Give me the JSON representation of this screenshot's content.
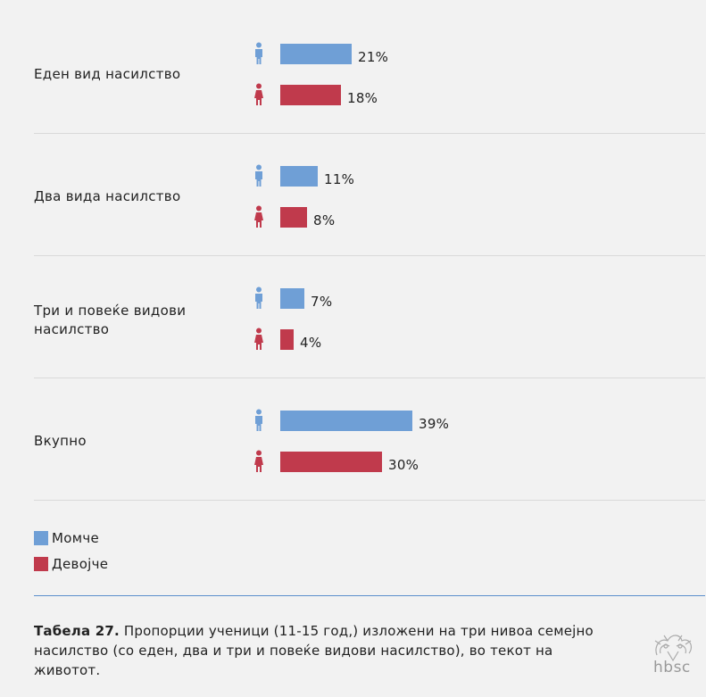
{
  "colors": {
    "boy": "#6f9fd6",
    "girl": "#c03a4c",
    "divider": "#5b8fcc"
  },
  "chart_data": {
    "type": "bar",
    "orientation": "horizontal",
    "categories": [
      "Еден вид насилство",
      "Два вида насилство",
      "Три и повеќе видови насилство",
      "Вкупно"
    ],
    "series": [
      {
        "name": "Момче",
        "values": [
          21,
          11,
          7,
          39
        ],
        "color": "#6f9fd6"
      },
      {
        "name": "Девојче",
        "values": [
          18,
          8,
          4,
          30
        ],
        "color": "#c03a4c"
      }
    ],
    "unit": "%",
    "xlim": [
      0,
      100
    ],
    "grid": false,
    "legend": "bottom-left"
  },
  "legend": {
    "boy": "Момче",
    "girl": "Девојче"
  },
  "caption": {
    "label": "Табела 27.",
    "text": " Пропорции ученици (11-15 год,) изложени на три нивоа семејно насилство (со еден, два и три и повеќе видови насилство), во текот на животот."
  },
  "logo": {
    "text": "hbsc"
  }
}
